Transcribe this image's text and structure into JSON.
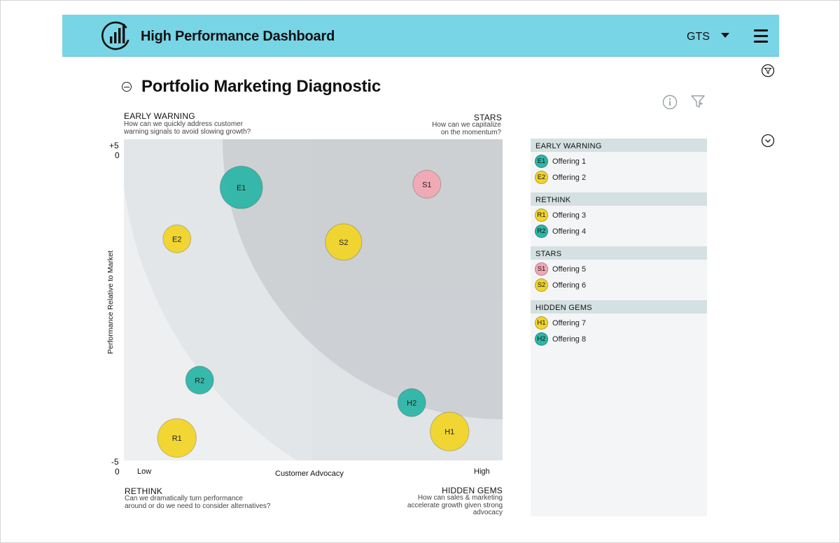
{
  "app": {
    "title": "High Performance Dashboard",
    "company": "GTS"
  },
  "section": {
    "title": "Portfolio Marketing Diagnostic"
  },
  "quadrants": {
    "early_warning": {
      "title": "EARLY WARNING",
      "subtitle": [
        "How can we quickly address customer",
        "warning signals to avoid slowing growth?"
      ]
    },
    "stars": {
      "title": "STARS",
      "subtitle": [
        "How can we capitalize",
        "on the momentum?"
      ]
    },
    "rethink": {
      "title": "RETHINK",
      "subtitle": [
        "Can we dramatically turn performance",
        "around or do we need to consider alternatives?"
      ]
    },
    "hidden_gems": {
      "title": "HIDDEN GEMS",
      "subtitle": [
        "How can sales & marketing",
        "accelerate growth given strong",
        "advocacy"
      ]
    }
  },
  "colors": {
    "topbar": "#78d5e6",
    "teal": "#2db7a7",
    "yellow": "#f2d52a",
    "pink": "#f2a8b5",
    "quad_light": "#edeff1",
    "quad_mid": "#dde2e4",
    "arc_overlay": "#c7cccf"
  },
  "icons": {
    "logo": "bar-chart-circle-icon",
    "menu": "hamburger-menu-icon",
    "info": "info-icon",
    "filter": "filter-icon",
    "collapse": "minus-circle-icon",
    "side_top": "filter-circle-icon",
    "side_expand": "chevron-down-circle-icon"
  },
  "chart_data": {
    "type": "scatter",
    "xlabel": "Customer Advocacy",
    "ylabel": "Performance Relative to Market",
    "x_tick_labels": [
      "Low",
      "High"
    ],
    "y_tick_labels": {
      "top": [
        "+5",
        "0"
      ],
      "bottom": [
        "-5",
        "0"
      ]
    },
    "xlim": [
      0,
      10
    ],
    "ylim": [
      -5,
      5
    ],
    "grid": false,
    "points": [
      {
        "id": "E1",
        "x": 3.1,
        "y": 3.5,
        "size": 3,
        "color": "teal"
      },
      {
        "id": "E2",
        "x": 1.4,
        "y": 1.9,
        "size": 1.3,
        "color": "yellow"
      },
      {
        "id": "S1",
        "x": 8.0,
        "y": 3.6,
        "size": 1.3,
        "color": "pink"
      },
      {
        "id": "S2",
        "x": 5.8,
        "y": 1.8,
        "size": 2.2,
        "color": "yellow"
      },
      {
        "id": "R2",
        "x": 2.0,
        "y": -2.5,
        "size": 1.3,
        "color": "teal"
      },
      {
        "id": "R1",
        "x": 1.4,
        "y": -4.3,
        "size": 2.5,
        "color": "yellow"
      },
      {
        "id": "H2",
        "x": 7.6,
        "y": -3.2,
        "size": 1.3,
        "color": "teal"
      },
      {
        "id": "H1",
        "x": 8.6,
        "y": -4.1,
        "size": 2.5,
        "color": "yellow"
      }
    ]
  },
  "legend": {
    "groups": [
      {
        "title": "EARLY WARNING",
        "items": [
          {
            "code": "E1",
            "label": "Offering 1",
            "color": "teal"
          },
          {
            "code": "E2",
            "label": "Offering 2",
            "color": "yellow"
          }
        ]
      },
      {
        "title": "RETHINK",
        "items": [
          {
            "code": "R1",
            "label": "Offering 3",
            "color": "yellow"
          },
          {
            "code": "R2",
            "label": "Offering 4",
            "color": "teal"
          }
        ]
      },
      {
        "title": "STARS",
        "items": [
          {
            "code": "S1",
            "label": "Offering 5",
            "color": "pink"
          },
          {
            "code": "S2",
            "label": "Offering 6",
            "color": "yellow"
          }
        ]
      },
      {
        "title": "HIDDEN GEMS",
        "items": [
          {
            "code": "H1",
            "label": "Offering 7",
            "color": "yellow"
          },
          {
            "code": "H2",
            "label": "Offering 8",
            "color": "teal"
          }
        ]
      }
    ]
  }
}
